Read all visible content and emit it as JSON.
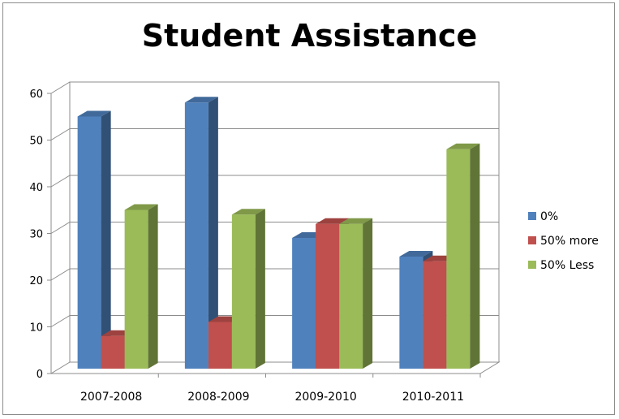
{
  "chart_data": {
    "type": "bar",
    "title": "Student Assistance",
    "xlabel": "",
    "ylabel": "",
    "categories": [
      "2007-2008",
      "2008-2009",
      "2009-2010",
      "2010-2011"
    ],
    "series": [
      {
        "name": "0%",
        "values": [
          54,
          57,
          28,
          24
        ],
        "color": "#4f81bd"
      },
      {
        "name": "50% more",
        "values": [
          7,
          10,
          31,
          23
        ],
        "color": "#c0504d"
      },
      {
        "name": "50% Less",
        "values": [
          34,
          33,
          31,
          47
        ],
        "color": "#9bbb59"
      }
    ],
    "ylim": [
      0,
      60
    ],
    "yticks": [
      "0",
      "10",
      "20",
      "30",
      "40",
      "50",
      "60"
    ],
    "grid": true,
    "legend_position": "right",
    "style": "3d-clustered-column"
  }
}
